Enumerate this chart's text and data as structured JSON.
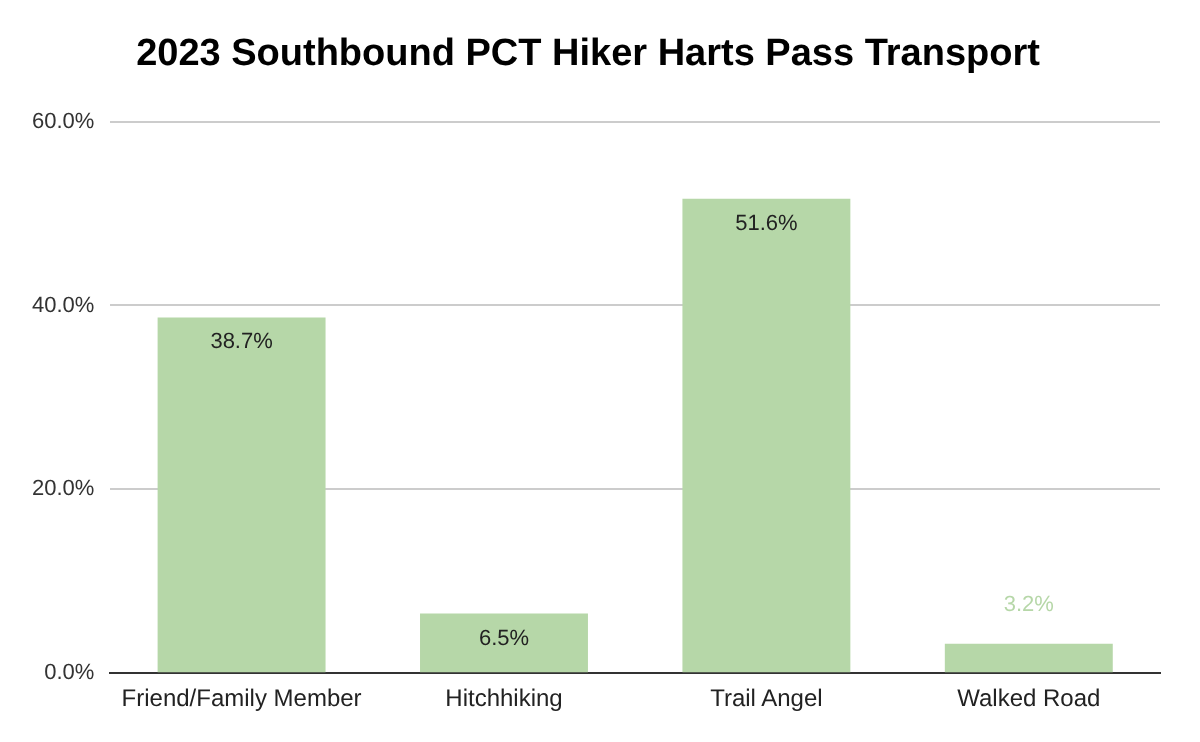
{
  "chart_data": {
    "type": "bar",
    "title": "2023 Southbound PCT Hiker Harts Pass Transport",
    "categories": [
      "Friend/Family Member",
      "Hitchhiking",
      "Trail Angel",
      "Walked Road"
    ],
    "values": [
      38.7,
      6.5,
      51.6,
      3.2
    ],
    "value_labels": [
      "38.7%",
      "6.5%",
      "51.6%",
      "3.2%"
    ],
    "color": "#b6d7a8",
    "ylim": [
      0,
      60
    ],
    "yticks": [
      {
        "value": 0,
        "label": "0.0%"
      },
      {
        "value": 20,
        "label": "20.0%"
      },
      {
        "value": 40,
        "label": "40.0%"
      },
      {
        "value": 60,
        "label": "60.0%"
      }
    ],
    "grid": "y",
    "legend": false
  }
}
